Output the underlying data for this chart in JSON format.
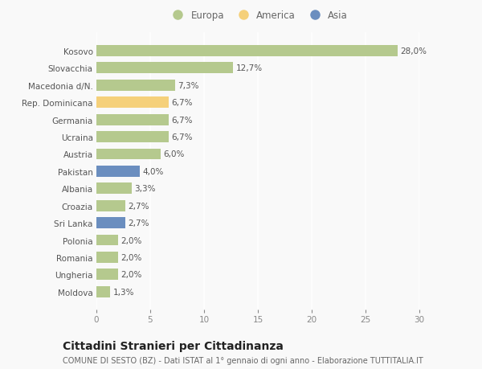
{
  "categories": [
    "Kosovo",
    "Slovacchia",
    "Macedonia d/N.",
    "Rep. Dominicana",
    "Germania",
    "Ucraina",
    "Austria",
    "Pakistan",
    "Albania",
    "Croazia",
    "Sri Lanka",
    "Polonia",
    "Romania",
    "Ungheria",
    "Moldova"
  ],
  "values": [
    28.0,
    12.7,
    7.3,
    6.7,
    6.7,
    6.7,
    6.0,
    4.0,
    3.3,
    2.7,
    2.7,
    2.0,
    2.0,
    2.0,
    1.3
  ],
  "labels": [
    "28,0%",
    "12,7%",
    "7,3%",
    "6,7%",
    "6,7%",
    "6,7%",
    "6,0%",
    "4,0%",
    "3,3%",
    "2,7%",
    "2,7%",
    "2,0%",
    "2,0%",
    "2,0%",
    "1,3%"
  ],
  "continent": [
    "Europa",
    "Europa",
    "Europa",
    "America",
    "Europa",
    "Europa",
    "Europa",
    "Asia",
    "Europa",
    "Europa",
    "Asia",
    "Europa",
    "Europa",
    "Europa",
    "Europa"
  ],
  "colors": {
    "Europa": "#b5c98e",
    "America": "#f5d07a",
    "Asia": "#6b8ebf"
  },
  "legend": [
    {
      "label": "Europa",
      "color": "#b5c98e"
    },
    {
      "label": "America",
      "color": "#f5d07a"
    },
    {
      "label": "Asia",
      "color": "#6b8ebf"
    }
  ],
  "xlim": [
    0,
    30
  ],
  "xticks": [
    0,
    5,
    10,
    15,
    20,
    25,
    30
  ],
  "title": "Cittadini Stranieri per Cittadinanza",
  "subtitle": "COMUNE DI SESTO (BZ) - Dati ISTAT al 1° gennaio di ogni anno - Elaborazione TUTTITALIA.IT",
  "background_color": "#f9f9f9",
  "grid_color": "#ffffff",
  "bar_height": 0.65,
  "label_fontsize": 7.5,
  "tick_fontsize": 7.5,
  "title_fontsize": 10,
  "subtitle_fontsize": 7
}
